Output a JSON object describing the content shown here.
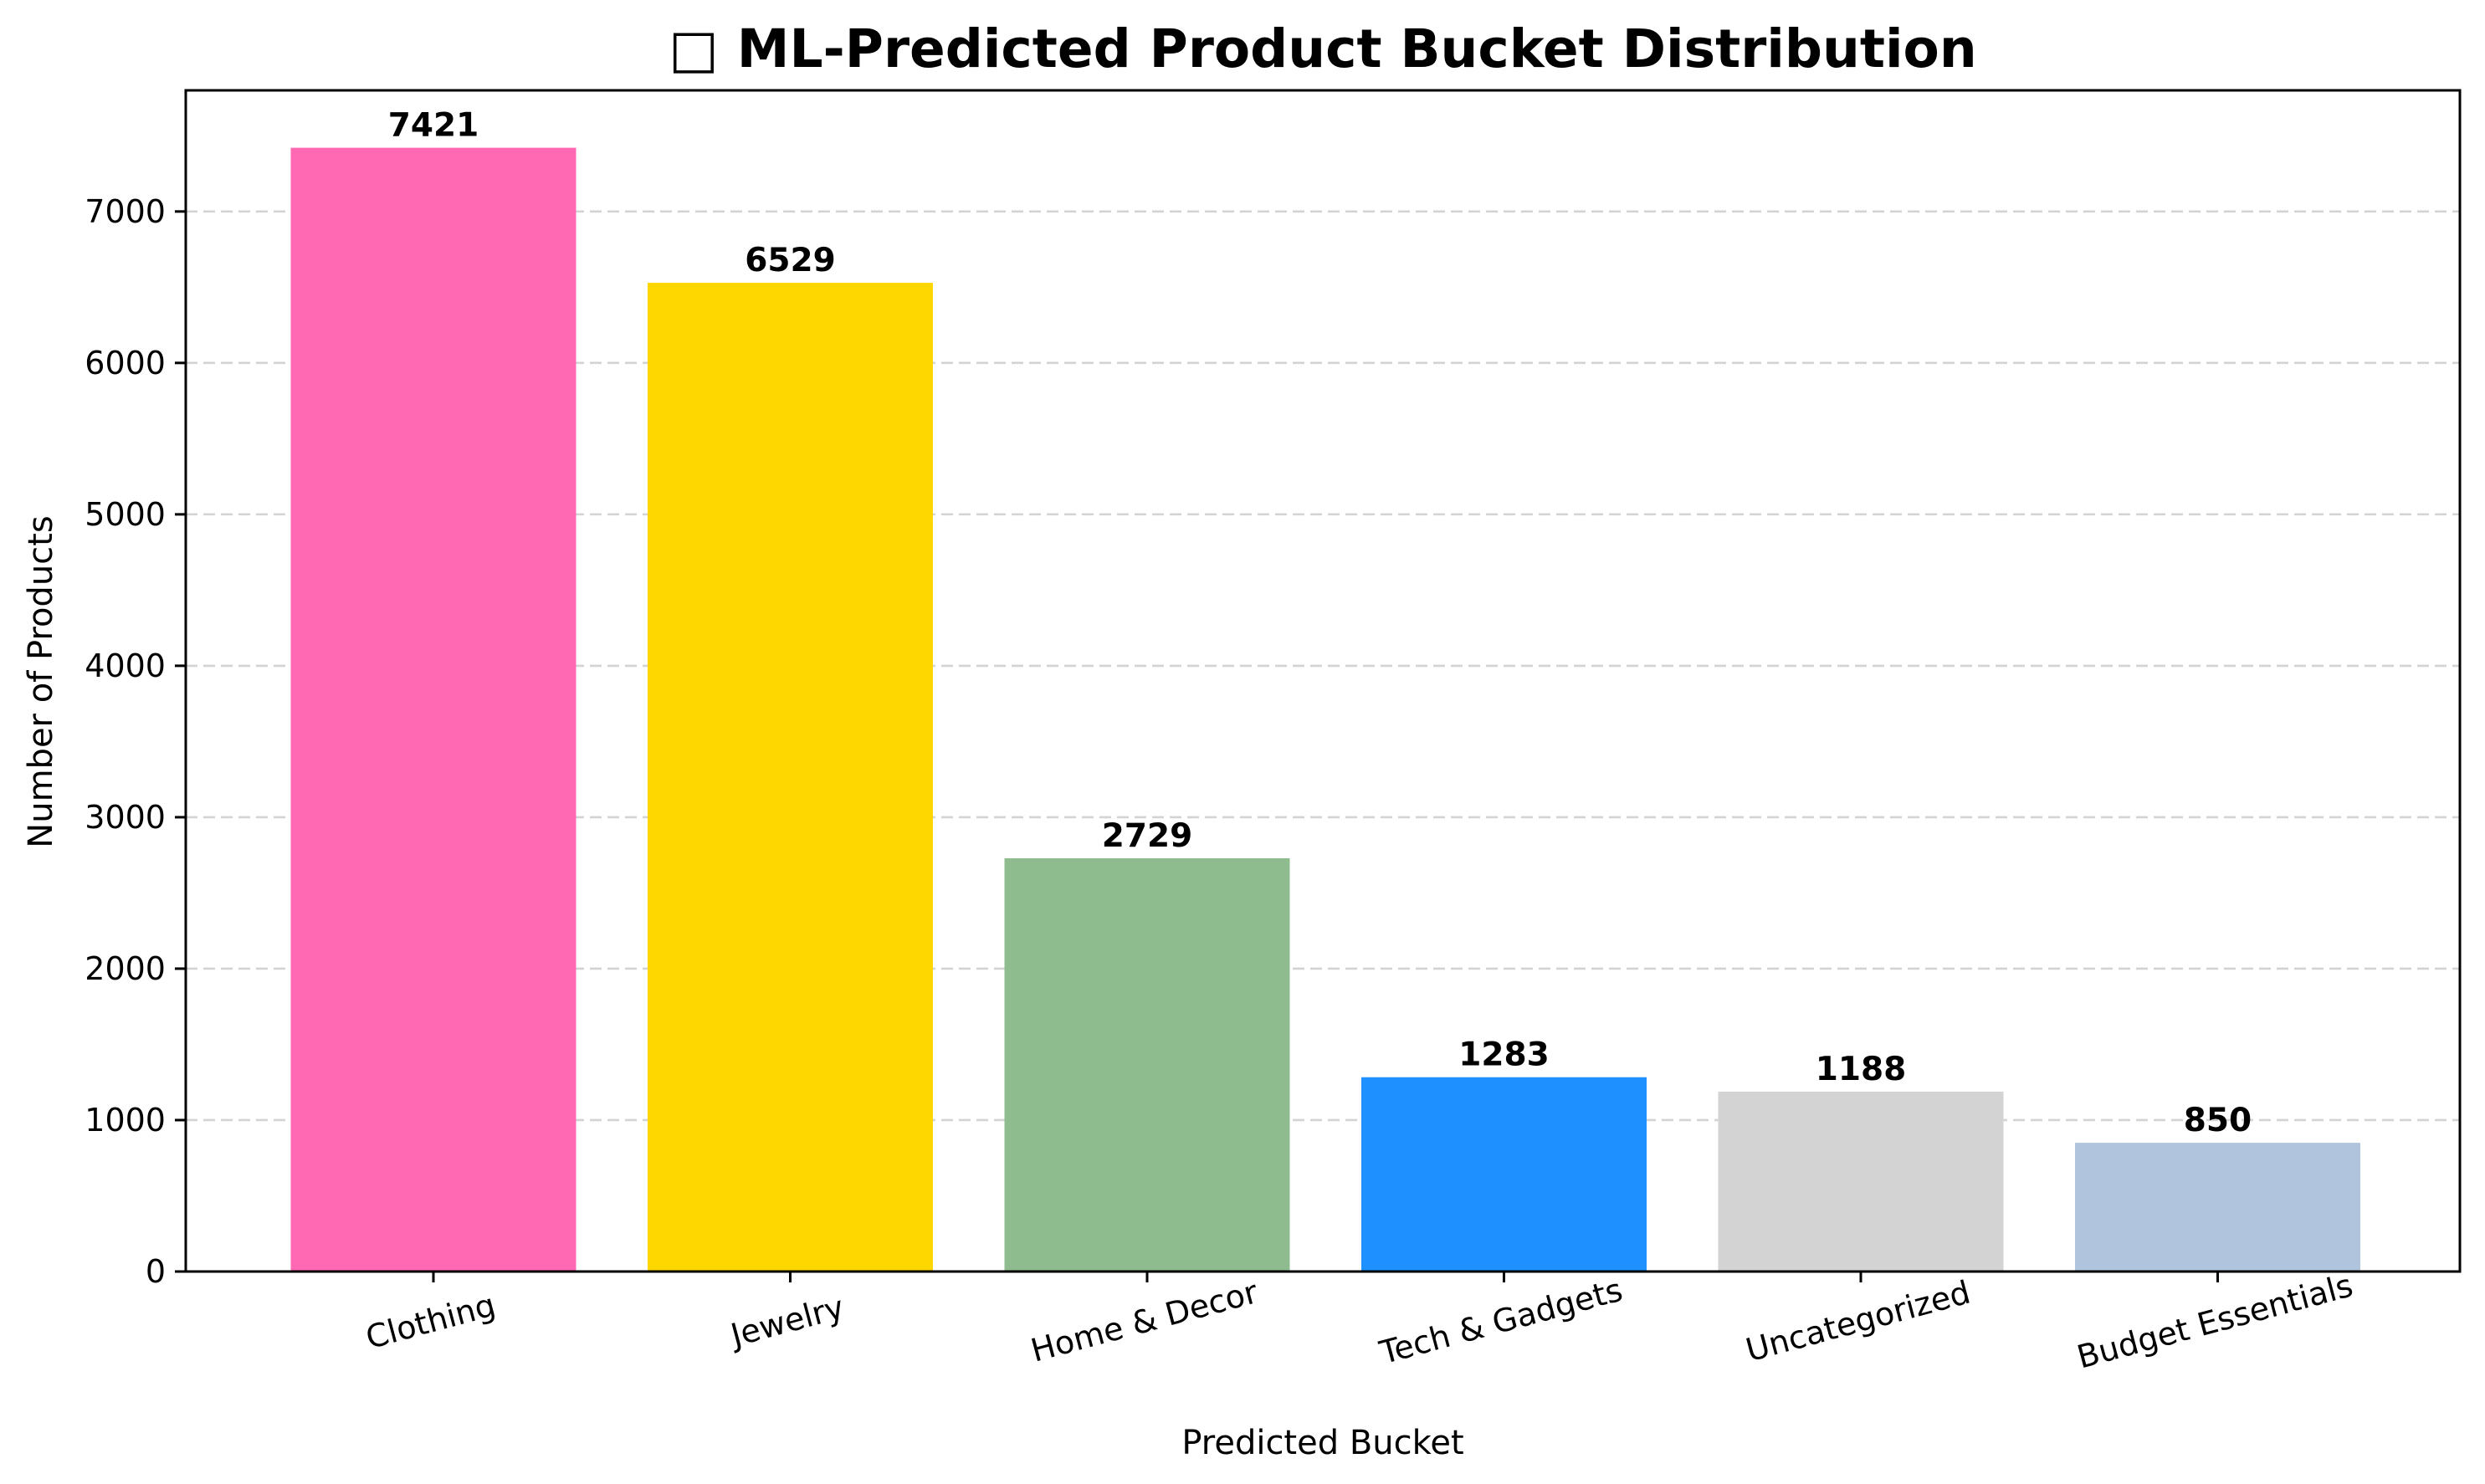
{
  "chart_data": {
    "type": "bar",
    "title": "□ ML-Predicted Product Bucket Distribution",
    "xlabel": "Predicted Bucket",
    "ylabel": "Number of Products",
    "categories": [
      "Clothing",
      "Jewelry",
      "Home & Decor",
      "Tech & Gadgets",
      "Uncategorized",
      "Budget Essentials"
    ],
    "values": [
      7421,
      6529,
      2729,
      1283,
      1188,
      850
    ],
    "value_labels": [
      "7421",
      "6529",
      "2729",
      "1283",
      "1188",
      "850"
    ],
    "colors": [
      "#FF69B4",
      "#FFD700",
      "#8FBC8F",
      "#1E90FF",
      "#D3D3D3",
      "#B0C4DE"
    ],
    "ylim": [
      0,
      7800
    ],
    "yticks": [
      0,
      1000,
      2000,
      3000,
      4000,
      5000,
      6000,
      7000
    ],
    "ytick_labels": [
      "0",
      "1000",
      "2000",
      "3000",
      "4000",
      "5000",
      "6000",
      "7000"
    ],
    "xtick_rotation_deg": -15,
    "grid": "y-axis, dashed",
    "legend": "none"
  }
}
